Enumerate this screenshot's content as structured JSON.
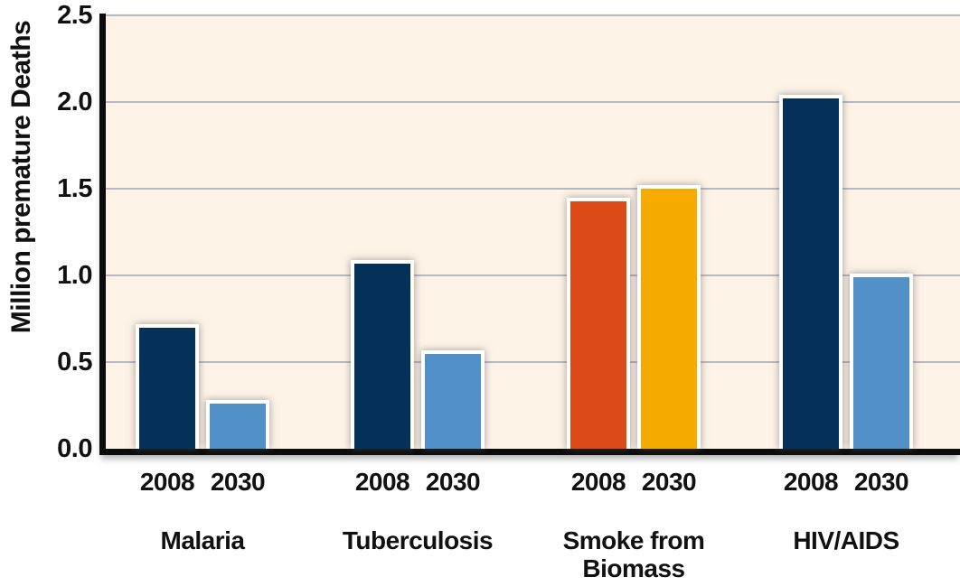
{
  "chart_data": {
    "type": "bar",
    "title": "",
    "ylabel": "Million premature Deaths",
    "xlabel": "",
    "ylim": [
      0.0,
      2.5
    ],
    "ytick_labels": [
      "0.0",
      "0.5",
      "1.0",
      "1.5",
      "2.0",
      "2.5"
    ],
    "ytick_values": [
      0,
      0.5,
      1,
      1.5,
      2,
      2.5
    ],
    "grid": "horizontal",
    "legend_position": "none",
    "categories": [
      "Malaria",
      "Tuberculosis",
      "Smoke from Biomass",
      "HIV/AIDS"
    ],
    "category_display": [
      "Malaria",
      "Tuberculosis",
      "Smoke from\nBiomass",
      "HIV/AIDS"
    ],
    "bar_year_labels": [
      "2008",
      "2030"
    ],
    "series": [
      {
        "name": "2008",
        "values": [
          0.72,
          1.09,
          1.45,
          2.04
        ],
        "colors": [
          "#053159",
          "#053159",
          "#dc4a17",
          "#053159"
        ]
      },
      {
        "name": "2030",
        "values": [
          0.28,
          0.57,
          1.52,
          1.01
        ],
        "colors": [
          "#5191c8",
          "#5191c8",
          "#f5ab00",
          "#5191c8"
        ]
      }
    ],
    "colors": {
      "plot_background": "#fdf3e7",
      "page_background": "#ffffff",
      "gridline": "#b5b9c0",
      "axis": "#0c0c0c",
      "bar_border": "#ffffff",
      "text": "#111111"
    }
  }
}
